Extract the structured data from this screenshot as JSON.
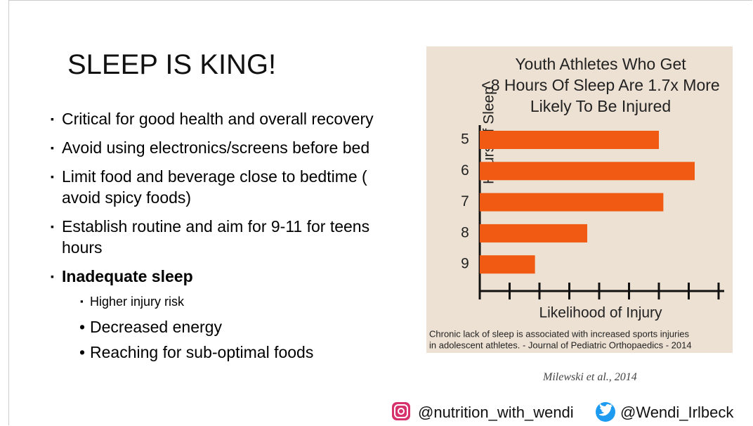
{
  "slide": {
    "title": "SLEEP IS KING!",
    "bullets": [
      "Critical for good health and overall recovery",
      "Avoid using electronics/screens before bed",
      "Limit food and beverage close to bedtime ( avoid spicy foods)",
      "Establish routine and aim for 9-11 for teens hours",
      "Inadequate sleep"
    ],
    "sub_bullets": [
      "Higher injury risk",
      "Decreased energy",
      "Reaching for sub-optimal foods"
    ],
    "citation": "Milewski et al., 2014",
    "instagram": "@nutrition_with_wendi",
    "twitter": "@Wendi_Irlbeck"
  },
  "chart_data": {
    "type": "barh",
    "title": [
      "Youth Athletes Who Get",
      "<8 Hours Of Sleep Are 1.7x More",
      "Likely To Be Injured"
    ],
    "categories": [
      "5",
      "6",
      "7",
      "8",
      "9"
    ],
    "values": [
      6.0,
      7.2,
      6.15,
      3.6,
      1.85
    ],
    "color": "#f05a12",
    "xlim": [
      0,
      8
    ],
    "xticks": [
      0,
      1,
      2,
      3,
      4,
      5,
      6,
      7,
      8
    ],
    "x_label": "Likelihood of Injury",
    "y_label": "Hours of Sleep",
    "caption": [
      "Chronic lack of sleep is associated with increased sports injuries",
      "in adolescent athletes. - Journal of Pediatric Orthopaedics - 2014"
    ]
  }
}
